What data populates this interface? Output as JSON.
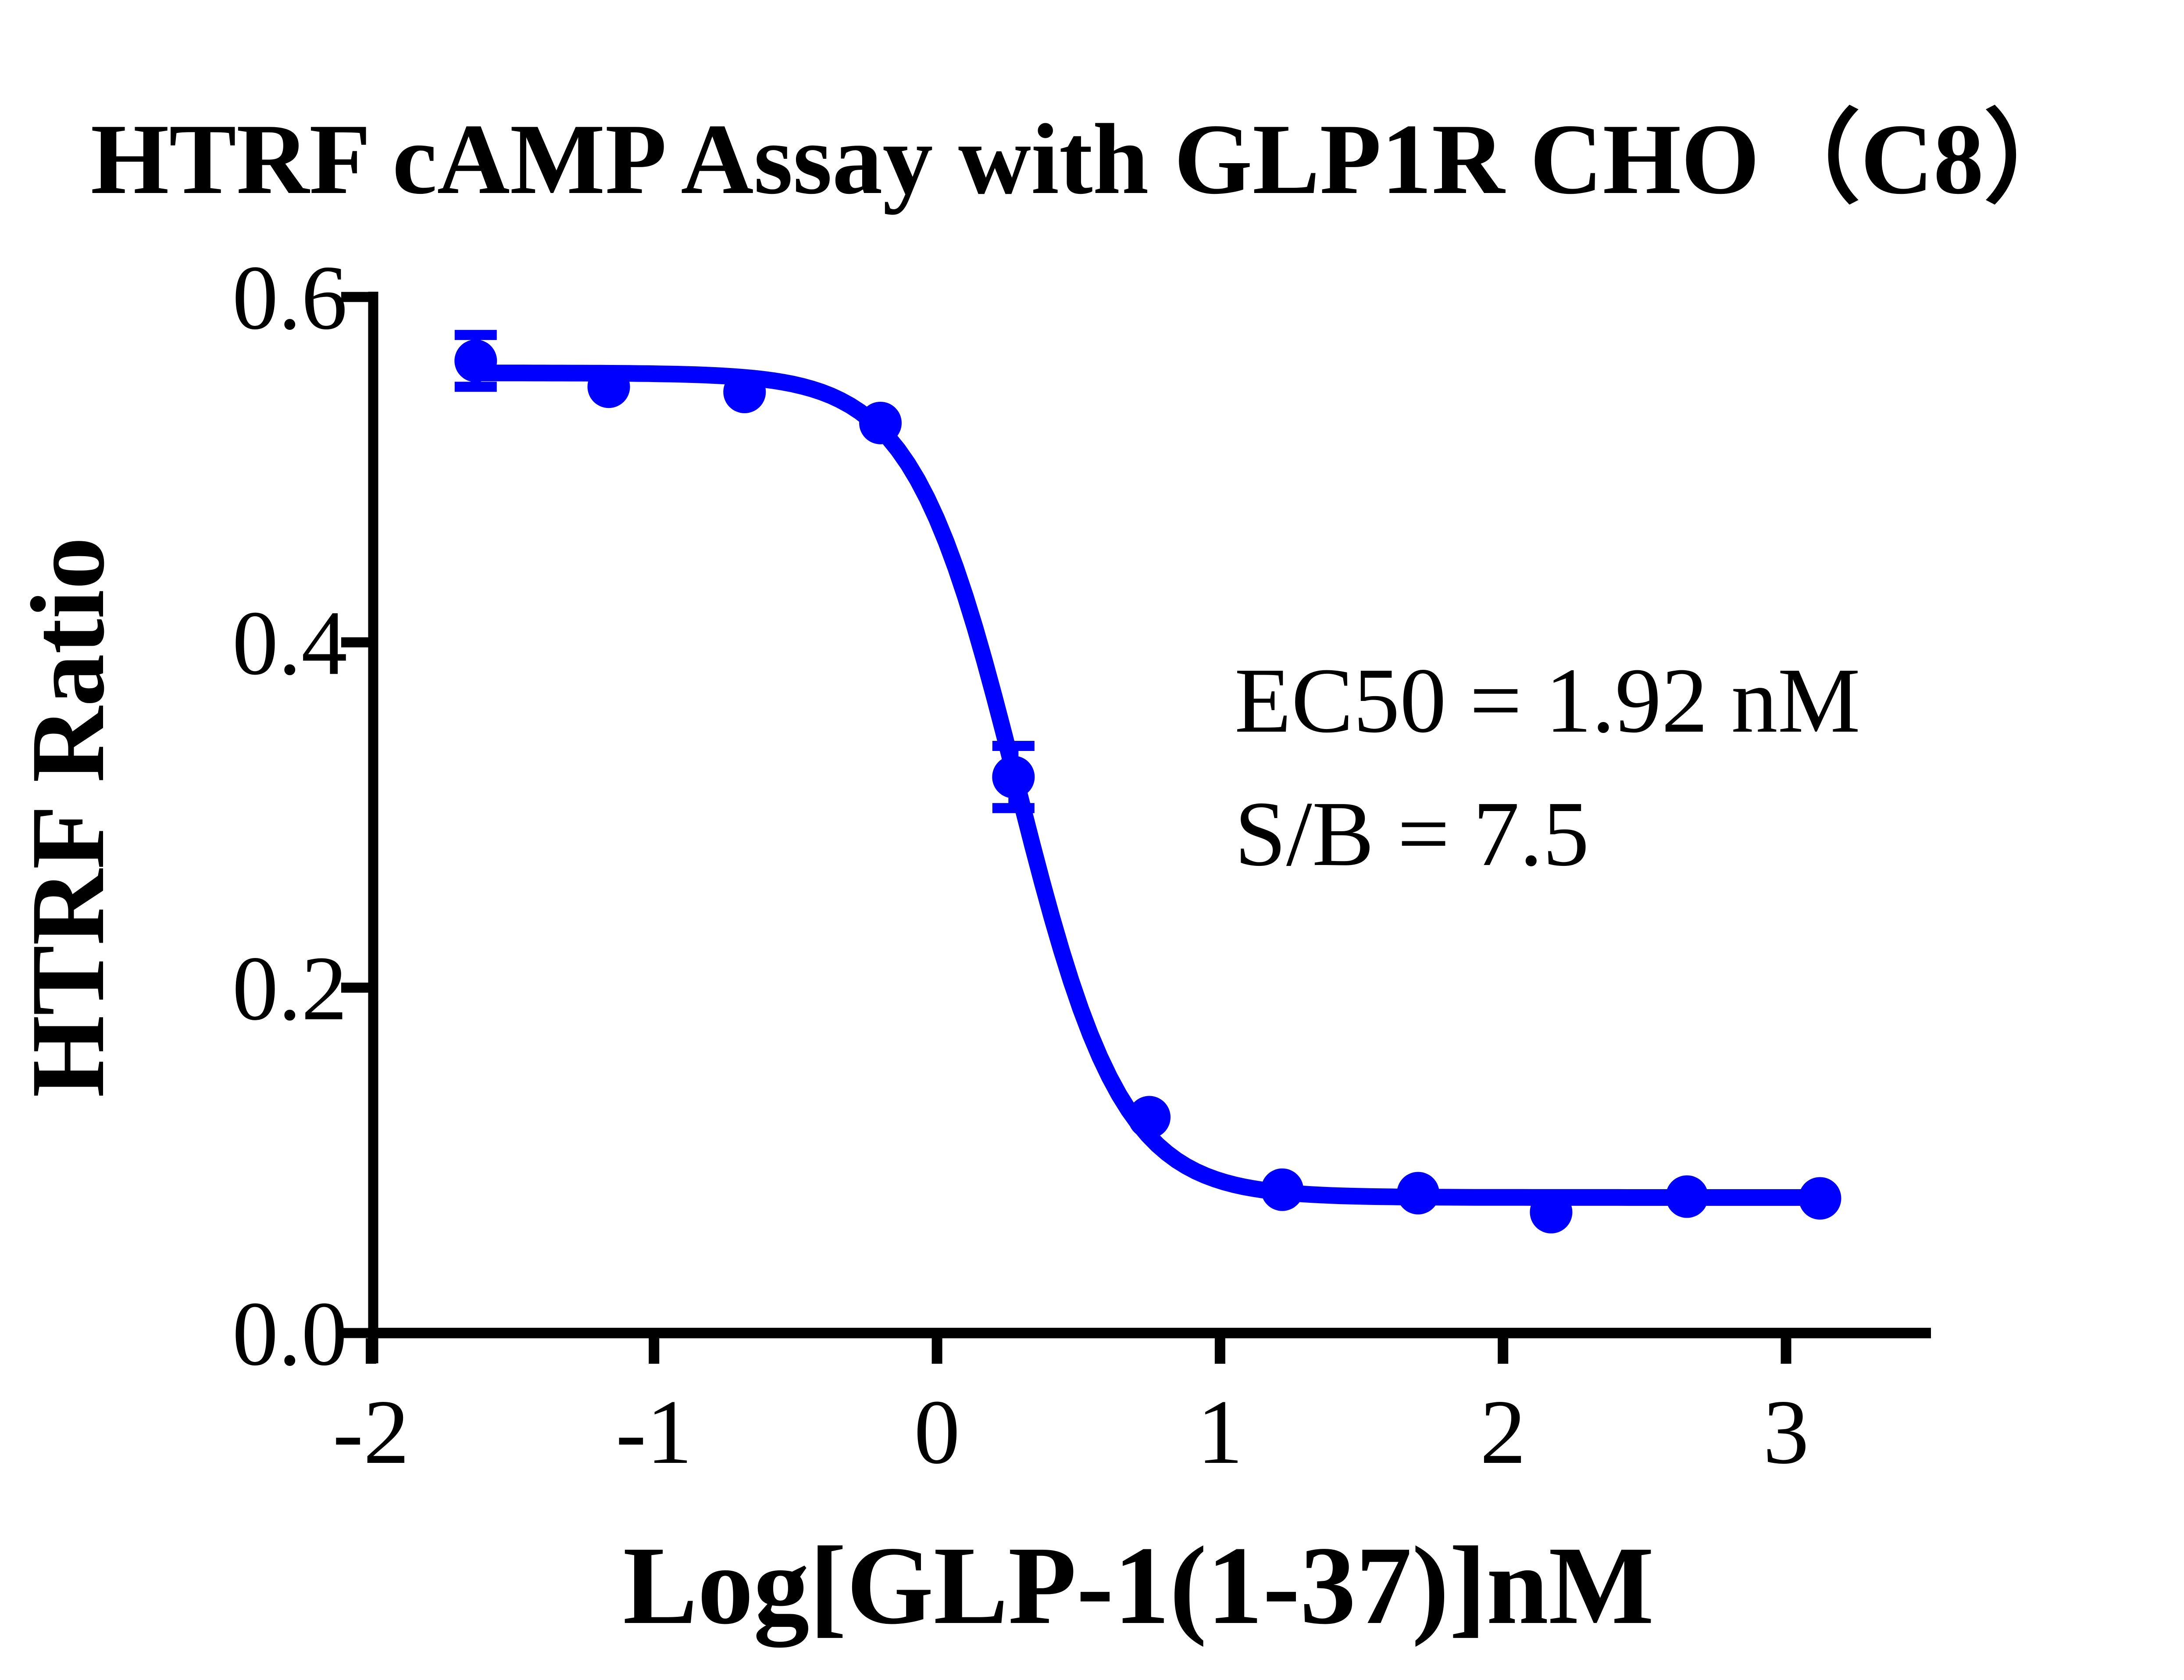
{
  "chart_data": {
    "type": "scatter",
    "title": "HTRF cAMP Assay with GLP1R CHO（C8）",
    "xlabel": "Log[GLP-1(1-37)]nM",
    "ylabel": "HTRF Ratio",
    "x_tick_labels": [
      "-2",
      "-1",
      "0",
      "1",
      "2",
      "3"
    ],
    "x_tick_values": [
      -2,
      -1,
      0,
      1,
      2,
      3
    ],
    "y_tick_labels": [
      "0.0",
      "0.2",
      "0.4",
      "0.6"
    ],
    "y_tick_values": [
      0.0,
      0.2,
      0.4,
      0.6
    ],
    "xlim": [
      -2,
      3.51
    ],
    "ylim": [
      0.0,
      0.6
    ],
    "grid": false,
    "legend_position": "none",
    "series_color": "#0000ff",
    "points": [
      {
        "x": -1.63,
        "y": 0.563,
        "err": 0.015
      },
      {
        "x": -1.16,
        "y": 0.548,
        "err": null
      },
      {
        "x": -0.68,
        "y": 0.545,
        "err": null
      },
      {
        "x": -0.2,
        "y": 0.527,
        "err": null
      },
      {
        "x": 0.27,
        "y": 0.322,
        "err": 0.018
      },
      {
        "x": 0.75,
        "y": 0.125,
        "err": null
      },
      {
        "x": 1.22,
        "y": 0.083,
        "err": null
      },
      {
        "x": 1.7,
        "y": 0.081,
        "err": null
      },
      {
        "x": 2.17,
        "y": 0.07,
        "err": null
      },
      {
        "x": 2.65,
        "y": 0.079,
        "err": null
      },
      {
        "x": 3.12,
        "y": 0.078,
        "err": null
      }
    ],
    "fit_curve": {
      "model": "four-parameter-logistic",
      "top": 0.556,
      "bottom": 0.0785,
      "log_ec50": 0.283,
      "hill": 2.35,
      "x_start": -1.63,
      "x_end": 3.12
    },
    "annotations": [
      {
        "text": "EC50 = 1.92 nM"
      },
      {
        "text": "S/B = 7.5"
      }
    ]
  }
}
